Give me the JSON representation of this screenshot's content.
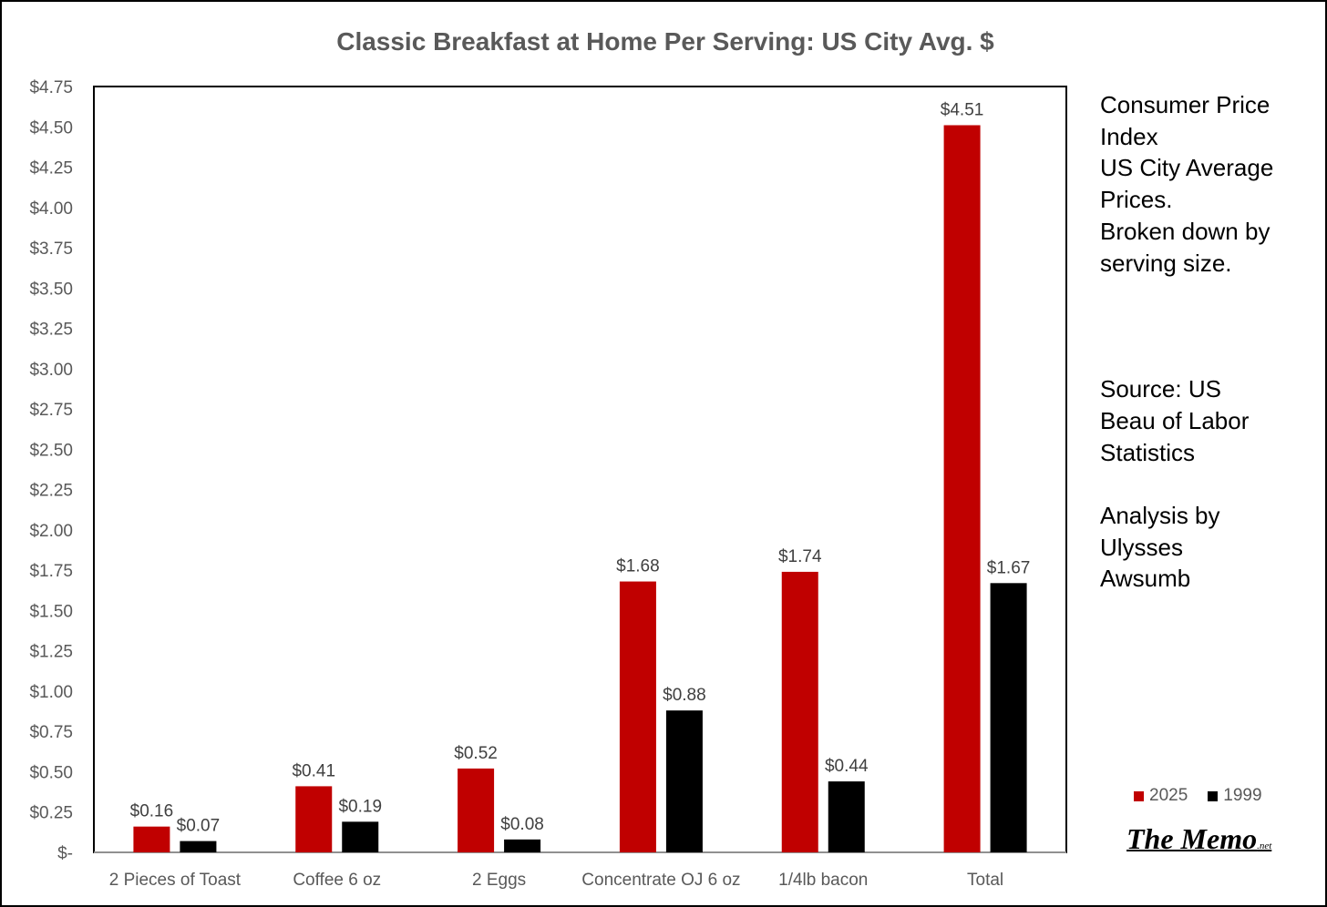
{
  "chart_data": {
    "type": "bar",
    "title": "Classic Breakfast at Home Per Serving: US City Avg. $",
    "categories": [
      "2 Pieces of Toast",
      "Coffee 6 oz",
      "2 Eggs",
      "Concentrate OJ 6 oz",
      "1/4lb bacon",
      "Total"
    ],
    "series": [
      {
        "name": "2025",
        "color": "#C00000",
        "values": [
          0.16,
          0.41,
          0.52,
          1.68,
          1.74,
          4.51
        ],
        "labels": [
          "$0.16",
          "$0.41",
          "$0.52",
          "$1.68",
          "$1.74",
          "$4.51"
        ]
      },
      {
        "name": "1999",
        "color": "#000000",
        "values": [
          0.07,
          0.19,
          0.08,
          0.88,
          0.44,
          1.67
        ],
        "labels": [
          "$0.07",
          "$0.19",
          "$0.08",
          "$0.88",
          "$0.44",
          "$1.67"
        ]
      }
    ],
    "ylim": [
      0,
      4.75
    ],
    "yticks": [
      0,
      0.25,
      0.5,
      0.75,
      1.0,
      1.25,
      1.5,
      1.75,
      2.0,
      2.25,
      2.5,
      2.75,
      3.0,
      3.25,
      3.5,
      3.75,
      4.0,
      4.25,
      4.5,
      4.75
    ],
    "ytick_labels": [
      "$-",
      "$0.25",
      "$0.50",
      "$0.75",
      "$1.00",
      "$1.25",
      "$1.50",
      "$1.75",
      "$2.00",
      "$2.25",
      "$2.50",
      "$2.75",
      "$3.00",
      "$3.25",
      "$3.50",
      "$3.75",
      "$4.00",
      "$4.25",
      "$4.50",
      "$4.75"
    ],
    "xlabel": "",
    "ylabel": "",
    "grid": false,
    "legend": "bottom-right"
  },
  "side_text": {
    "line1": "Consumer Price\nIndex\nUS City Average\nPrices.\nBroken down by\nserving size.",
    "line2": "Source: US\nBeau of Labor\nStatistics",
    "line3": "Analysis by\nUlysses\nAwsumb"
  },
  "legend": {
    "item1": "2025",
    "item2": "1999"
  },
  "watermark": {
    "main": "The Memo",
    "suffix": ".net"
  }
}
